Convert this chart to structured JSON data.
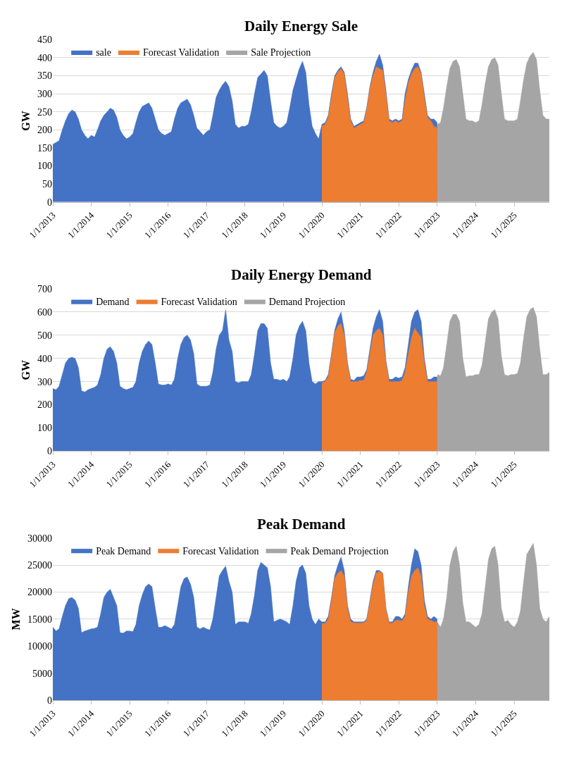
{
  "chart_data": [
    {
      "type": "area",
      "title": "Daily Energy Sale",
      "ylabel": "GW",
      "xlim": [
        "2013-01",
        "2025-12"
      ],
      "xticks": [
        {
          "value": "2013-01",
          "label": "1/1/2013"
        },
        {
          "value": "2014-01",
          "label": "1/1/2014"
        },
        {
          "value": "2015-01",
          "label": "1/1/2015"
        },
        {
          "value": "2016-01",
          "label": "1/1/2016"
        },
        {
          "value": "2017-01",
          "label": "1/1/2017"
        },
        {
          "value": "2018-01",
          "label": "1/1/2018"
        },
        {
          "value": "2019-01",
          "label": "1/1/2019"
        },
        {
          "value": "2020-01",
          "label": "1/1/2020"
        },
        {
          "value": "2021-01",
          "label": "1/1/2021"
        },
        {
          "value": "2022-01",
          "label": "1/1/2022"
        },
        {
          "value": "2023-01",
          "label": "1/1/2023"
        },
        {
          "value": "2024-01",
          "label": "1/1/2024"
        },
        {
          "value": "2025-01",
          "label": "1/1/2025"
        }
      ],
      "ylim": [
        0,
        450
      ],
      "yticks": [
        0,
        50,
        100,
        150,
        200,
        250,
        300,
        350,
        400,
        450
      ],
      "grid": "y",
      "legend": "top",
      "series": [
        {
          "name": "sale",
          "color": "#4472c4",
          "x": [
            "2013-01",
            "2013-02",
            "2013-03",
            "2013-04",
            "2013-05",
            "2013-06",
            "2013-07",
            "2013-08",
            "2013-09",
            "2013-10",
            "2013-11",
            "2013-12",
            "2014-01",
            "2014-02",
            "2014-03",
            "2014-04",
            "2014-05",
            "2014-06",
            "2014-07",
            "2014-08",
            "2014-09",
            "2014-10",
            "2014-11",
            "2014-12",
            "2015-01",
            "2015-02",
            "2015-03",
            "2015-04",
            "2015-05",
            "2015-06",
            "2015-07",
            "2015-08",
            "2015-09",
            "2015-10",
            "2015-11",
            "2015-12",
            "2016-01",
            "2016-02",
            "2016-03",
            "2016-04",
            "2016-05",
            "2016-06",
            "2016-07",
            "2016-08",
            "2016-09",
            "2016-10",
            "2016-11",
            "2016-12",
            "2017-01",
            "2017-02",
            "2017-03",
            "2017-04",
            "2017-05",
            "2017-06",
            "2017-07",
            "2017-08",
            "2017-09",
            "2017-10",
            "2017-11",
            "2017-12",
            "2018-01",
            "2018-02",
            "2018-03",
            "2018-04",
            "2018-05",
            "2018-06",
            "2018-07",
            "2018-08",
            "2018-09",
            "2018-10",
            "2018-11",
            "2018-12",
            "2019-01",
            "2019-02",
            "2019-03",
            "2019-04",
            "2019-05",
            "2019-06",
            "2019-07",
            "2019-08",
            "2019-09",
            "2019-10",
            "2019-11",
            "2019-12",
            "2020-01",
            "2020-02",
            "2020-03",
            "2020-04",
            "2020-05",
            "2020-06",
            "2020-07",
            "2020-08",
            "2020-09",
            "2020-10",
            "2020-11",
            "2020-12",
            "2021-01",
            "2021-02",
            "2021-03",
            "2021-04",
            "2021-05",
            "2021-06",
            "2021-07",
            "2021-08",
            "2021-09",
            "2021-10",
            "2021-11",
            "2021-12",
            "2022-01",
            "2022-02",
            "2022-03",
            "2022-04",
            "2022-05",
            "2022-06",
            "2022-07",
            "2022-08",
            "2022-09",
            "2022-10",
            "2022-11",
            "2022-12",
            "2023-01"
          ],
          "values": [
            160,
            165,
            170,
            200,
            225,
            245,
            255,
            250,
            230,
            200,
            185,
            175,
            185,
            180,
            200,
            225,
            240,
            250,
            260,
            255,
            235,
            200,
            185,
            175,
            180,
            190,
            220,
            250,
            265,
            270,
            275,
            260,
            230,
            200,
            190,
            185,
            190,
            195,
            230,
            260,
            275,
            280,
            285,
            270,
            240,
            205,
            195,
            185,
            195,
            200,
            240,
            290,
            310,
            325,
            335,
            320,
            280,
            215,
            205,
            210,
            210,
            215,
            250,
            300,
            345,
            355,
            365,
            350,
            280,
            220,
            210,
            205,
            210,
            220,
            260,
            310,
            340,
            370,
            390,
            360,
            270,
            210,
            190,
            175,
            215,
            220,
            240,
            300,
            350,
            365,
            375,
            360,
            300,
            230,
            210,
            215,
            220,
            225,
            260,
            320,
            360,
            390,
            410,
            380,
            310,
            230,
            225,
            230,
            225,
            230,
            300,
            340,
            365,
            385,
            385,
            360,
            300,
            240,
            230,
            230,
            220
          ]
        },
        {
          "name": "Forecast Validation",
          "color": "#ed7d31",
          "x": [
            "2020-01",
            "2020-02",
            "2020-03",
            "2020-04",
            "2020-05",
            "2020-06",
            "2020-07",
            "2020-08",
            "2020-09",
            "2020-10",
            "2020-11",
            "2020-12",
            "2021-01",
            "2021-02",
            "2021-03",
            "2021-04",
            "2021-05",
            "2021-06",
            "2021-07",
            "2021-08",
            "2021-09",
            "2021-10",
            "2021-11",
            "2021-12",
            "2022-01",
            "2022-02",
            "2022-03",
            "2022-04",
            "2022-05",
            "2022-06",
            "2022-07",
            "2022-08",
            "2022-09",
            "2022-10",
            "2022-11",
            "2022-12",
            "2023-01"
          ],
          "values": [
            210,
            215,
            235,
            290,
            345,
            360,
            370,
            355,
            290,
            225,
            205,
            210,
            215,
            220,
            255,
            315,
            350,
            375,
            370,
            365,
            300,
            225,
            220,
            225,
            220,
            225,
            280,
            330,
            355,
            370,
            375,
            355,
            290,
            235,
            225,
            210,
            205
          ]
        },
        {
          "name": "Sale Projection",
          "color": "#a5a5a5",
          "x": [
            "2023-01",
            "2023-02",
            "2023-03",
            "2023-04",
            "2023-05",
            "2023-06",
            "2023-07",
            "2023-08",
            "2023-09",
            "2023-10",
            "2023-11",
            "2023-12",
            "2024-01",
            "2024-02",
            "2024-03",
            "2024-04",
            "2024-05",
            "2024-06",
            "2024-07",
            "2024-08",
            "2024-09",
            "2024-10",
            "2024-11",
            "2024-12",
            "2025-01",
            "2025-02",
            "2025-03",
            "2025-04",
            "2025-05",
            "2025-06",
            "2025-07",
            "2025-08",
            "2025-09",
            "2025-10",
            "2025-11",
            "2025-12"
          ],
          "values": [
            215,
            220,
            260,
            320,
            370,
            390,
            395,
            375,
            300,
            230,
            225,
            225,
            220,
            225,
            270,
            330,
            375,
            395,
            400,
            380,
            300,
            230,
            225,
            225,
            225,
            230,
            280,
            340,
            385,
            405,
            415,
            395,
            310,
            240,
            230,
            230
          ]
        }
      ]
    },
    {
      "type": "area",
      "title": "Daily Energy Demand",
      "ylabel": "GW",
      "xlim": [
        "2013-01",
        "2025-12"
      ],
      "xticks": [
        {
          "value": "2013-01",
          "label": "1/1/2013"
        },
        {
          "value": "2014-01",
          "label": "1/1/2014"
        },
        {
          "value": "2015-01",
          "label": "1/1/2015"
        },
        {
          "value": "2016-01",
          "label": "1/1/2016"
        },
        {
          "value": "2017-01",
          "label": "1/1/2017"
        },
        {
          "value": "2018-01",
          "label": "1/1/2018"
        },
        {
          "value": "2019-01",
          "label": "1/1/2019"
        },
        {
          "value": "2020-01",
          "label": "1/1/2020"
        },
        {
          "value": "2021-01",
          "label": "1/1/2021"
        },
        {
          "value": "2022-01",
          "label": "1/1/2022"
        },
        {
          "value": "2023-01",
          "label": "1/1/2023"
        },
        {
          "value": "2024-01",
          "label": "1/1/2024"
        },
        {
          "value": "2025-01",
          "label": "1/1/2025"
        }
      ],
      "ylim": [
        0,
        700
      ],
      "yticks": [
        0,
        100,
        200,
        300,
        400,
        500,
        600,
        700
      ],
      "grid": "y",
      "legend": "top",
      "series": [
        {
          "name": "Demand",
          "color": "#4472c4",
          "x": [
            "2013-01",
            "2013-02",
            "2013-03",
            "2013-04",
            "2013-05",
            "2013-06",
            "2013-07",
            "2013-08",
            "2013-09",
            "2013-10",
            "2013-11",
            "2013-12",
            "2014-01",
            "2014-02",
            "2014-03",
            "2014-04",
            "2014-05",
            "2014-06",
            "2014-07",
            "2014-08",
            "2014-09",
            "2014-10",
            "2014-11",
            "2014-12",
            "2015-01",
            "2015-02",
            "2015-03",
            "2015-04",
            "2015-05",
            "2015-06",
            "2015-07",
            "2015-08",
            "2015-09",
            "2015-10",
            "2015-11",
            "2015-12",
            "2016-01",
            "2016-02",
            "2016-03",
            "2016-04",
            "2016-05",
            "2016-06",
            "2016-07",
            "2016-08",
            "2016-09",
            "2016-10",
            "2016-11",
            "2016-12",
            "2017-01",
            "2017-02",
            "2017-03",
            "2017-04",
            "2017-05",
            "2017-06",
            "2017-07",
            "2017-08",
            "2017-09",
            "2017-10",
            "2017-11",
            "2017-12",
            "2018-01",
            "2018-02",
            "2018-03",
            "2018-04",
            "2018-05",
            "2018-06",
            "2018-07",
            "2018-08",
            "2018-09",
            "2018-10",
            "2018-11",
            "2018-12",
            "2019-01",
            "2019-02",
            "2019-03",
            "2019-04",
            "2019-05",
            "2019-06",
            "2019-07",
            "2019-08",
            "2019-09",
            "2019-10",
            "2019-11",
            "2019-12",
            "2020-01",
            "2020-02",
            "2020-03",
            "2020-04",
            "2020-05",
            "2020-06",
            "2020-07",
            "2020-08",
            "2020-09",
            "2020-10",
            "2020-11",
            "2020-12",
            "2021-01",
            "2021-02",
            "2021-03",
            "2021-04",
            "2021-05",
            "2021-06",
            "2021-07",
            "2021-08",
            "2021-09",
            "2021-10",
            "2021-11",
            "2021-12",
            "2022-01",
            "2022-02",
            "2022-03",
            "2022-04",
            "2022-05",
            "2022-06",
            "2022-07",
            "2022-08",
            "2022-09",
            "2022-10",
            "2022-11",
            "2022-12",
            "2023-01"
          ],
          "values": [
            270,
            265,
            280,
            330,
            380,
            400,
            405,
            400,
            360,
            260,
            255,
            265,
            270,
            275,
            285,
            330,
            400,
            440,
            450,
            430,
            380,
            280,
            270,
            265,
            270,
            275,
            300,
            380,
            430,
            460,
            475,
            460,
            380,
            290,
            285,
            285,
            290,
            285,
            310,
            400,
            460,
            490,
            500,
            480,
            420,
            290,
            280,
            280,
            280,
            285,
            340,
            440,
            500,
            520,
            610,
            480,
            430,
            300,
            295,
            300,
            300,
            300,
            330,
            420,
            520,
            550,
            550,
            530,
            380,
            310,
            310,
            305,
            310,
            300,
            320,
            400,
            500,
            540,
            560,
            520,
            380,
            300,
            290,
            300,
            300,
            305,
            330,
            420,
            520,
            570,
            600,
            520,
            380,
            310,
            305,
            320,
            320,
            325,
            350,
            440,
            530,
            580,
            610,
            560,
            390,
            310,
            310,
            320,
            315,
            320,
            360,
            460,
            560,
            600,
            610,
            560,
            400,
            310,
            310,
            320,
            320
          ]
        },
        {
          "name": "Forecast Validation",
          "color": "#ed7d31",
          "x": [
            "2020-01",
            "2020-02",
            "2020-03",
            "2020-04",
            "2020-05",
            "2020-06",
            "2020-07",
            "2020-08",
            "2020-09",
            "2020-10",
            "2020-11",
            "2020-12",
            "2021-01",
            "2021-02",
            "2021-03",
            "2021-04",
            "2021-05",
            "2021-06",
            "2021-07",
            "2021-08",
            "2021-09",
            "2021-10",
            "2021-11",
            "2021-12",
            "2022-01",
            "2022-02",
            "2022-03",
            "2022-04",
            "2022-05",
            "2022-06",
            "2022-07",
            "2022-08",
            "2022-09",
            "2022-10",
            "2022-11",
            "2022-12",
            "2023-01"
          ],
          "values": [
            295,
            300,
            320,
            410,
            510,
            540,
            550,
            500,
            370,
            300,
            300,
            300,
            305,
            305,
            340,
            420,
            500,
            520,
            530,
            500,
            380,
            300,
            300,
            300,
            300,
            305,
            340,
            420,
            490,
            530,
            510,
            490,
            380,
            300,
            300,
            300,
            300
          ]
        },
        {
          "name": "Demand Projection",
          "color": "#a5a5a5",
          "x": [
            "2023-01",
            "2023-02",
            "2023-03",
            "2023-04",
            "2023-05",
            "2023-06",
            "2023-07",
            "2023-08",
            "2023-09",
            "2023-10",
            "2023-11",
            "2023-12",
            "2024-01",
            "2024-02",
            "2024-03",
            "2024-04",
            "2024-05",
            "2024-06",
            "2024-07",
            "2024-08",
            "2024-09",
            "2024-10",
            "2024-11",
            "2024-12",
            "2025-01",
            "2025-02",
            "2025-03",
            "2025-04",
            "2025-05",
            "2025-06",
            "2025-07",
            "2025-08",
            "2025-09",
            "2025-10",
            "2025-11",
            "2025-12"
          ],
          "values": [
            330,
            325,
            360,
            460,
            560,
            590,
            590,
            560,
            400,
            320,
            325,
            325,
            330,
            330,
            370,
            470,
            570,
            600,
            610,
            570,
            410,
            330,
            325,
            330,
            330,
            335,
            380,
            490,
            580,
            610,
            620,
            580,
            440,
            330,
            330,
            340
          ]
        }
      ]
    },
    {
      "type": "area",
      "title": "Peak Demand",
      "ylabel": "MW",
      "xlim": [
        "2013-01",
        "2025-12"
      ],
      "xticks": [
        {
          "value": "2013-01",
          "label": "1/1/2013"
        },
        {
          "value": "2014-01",
          "label": "1/1/2014"
        },
        {
          "value": "2015-01",
          "label": "1/1/2015"
        },
        {
          "value": "2016-01",
          "label": "1/1/2016"
        },
        {
          "value": "2017-01",
          "label": "1/1/2017"
        },
        {
          "value": "2018-01",
          "label": "1/1/2018"
        },
        {
          "value": "2019-01",
          "label": "1/1/2019"
        },
        {
          "value": "2020-01",
          "label": "1/1/2020"
        },
        {
          "value": "2021-01",
          "label": "1/1/2021"
        },
        {
          "value": "2022-01",
          "label": "1/1/2022"
        },
        {
          "value": "2023-01",
          "label": "1/1/2023"
        },
        {
          "value": "2024-01",
          "label": "1/1/2024"
        },
        {
          "value": "2025-01",
          "label": "1/1/2025"
        }
      ],
      "ylim": [
        0,
        30000
      ],
      "yticks": [
        0,
        5000,
        10000,
        15000,
        20000,
        25000,
        30000
      ],
      "grid": "y",
      "legend": "top",
      "series": [
        {
          "name": "Peak Demand",
          "color": "#4472c4",
          "x": [
            "2013-01",
            "2013-02",
            "2013-03",
            "2013-04",
            "2013-05",
            "2013-06",
            "2013-07",
            "2013-08",
            "2013-09",
            "2013-10",
            "2013-11",
            "2013-12",
            "2014-01",
            "2014-02",
            "2014-03",
            "2014-04",
            "2014-05",
            "2014-06",
            "2014-07",
            "2014-08",
            "2014-09",
            "2014-10",
            "2014-11",
            "2014-12",
            "2015-01",
            "2015-02",
            "2015-03",
            "2015-04",
            "2015-05",
            "2015-06",
            "2015-07",
            "2015-08",
            "2015-09",
            "2015-10",
            "2015-11",
            "2015-12",
            "2016-01",
            "2016-02",
            "2016-03",
            "2016-04",
            "2016-05",
            "2016-06",
            "2016-07",
            "2016-08",
            "2016-09",
            "2016-10",
            "2016-11",
            "2016-12",
            "2017-01",
            "2017-02",
            "2017-03",
            "2017-04",
            "2017-05",
            "2017-06",
            "2017-07",
            "2017-08",
            "2017-09",
            "2017-10",
            "2017-11",
            "2017-12",
            "2018-01",
            "2018-02",
            "2018-03",
            "2018-04",
            "2018-05",
            "2018-06",
            "2018-07",
            "2018-08",
            "2018-09",
            "2018-10",
            "2018-11",
            "2018-12",
            "2019-01",
            "2019-02",
            "2019-03",
            "2019-04",
            "2019-05",
            "2019-06",
            "2019-07",
            "2019-08",
            "2019-09",
            "2019-10",
            "2019-11",
            "2019-12",
            "2020-01",
            "2020-02",
            "2020-03",
            "2020-04",
            "2020-05",
            "2020-06",
            "2020-07",
            "2020-08",
            "2020-09",
            "2020-10",
            "2020-11",
            "2020-12",
            "2021-01",
            "2021-02",
            "2021-03",
            "2021-04",
            "2021-05",
            "2021-06",
            "2021-07",
            "2021-08",
            "2021-09",
            "2021-10",
            "2021-11",
            "2021-12",
            "2022-01",
            "2022-02",
            "2022-03",
            "2022-04",
            "2022-05",
            "2022-06",
            "2022-07",
            "2022-08",
            "2022-09",
            "2022-10",
            "2022-11",
            "2022-12",
            "2023-01"
          ],
          "values": [
            13500,
            12800,
            13200,
            15500,
            17500,
            18800,
            19000,
            18500,
            17000,
            12500,
            12800,
            13000,
            13200,
            13300,
            13500,
            16000,
            19000,
            20000,
            20500,
            19000,
            17500,
            12500,
            12400,
            12800,
            12800,
            12700,
            14000,
            17500,
            19500,
            21000,
            21500,
            21000,
            17000,
            13500,
            13500,
            13800,
            13500,
            13200,
            14000,
            17500,
            21000,
            22500,
            22800,
            21500,
            19000,
            13500,
            13200,
            13500,
            13200,
            13000,
            15000,
            19000,
            23000,
            24000,
            24800,
            22000,
            20000,
            14000,
            14500,
            14500,
            14500,
            14200,
            16000,
            19500,
            24000,
            25500,
            25000,
            24500,
            21000,
            14500,
            14800,
            15000,
            14800,
            14500,
            14000,
            17500,
            22000,
            24500,
            25000,
            23500,
            17500,
            15000,
            14000,
            15000,
            14500,
            14500,
            15500,
            19000,
            23000,
            25000,
            26500,
            24000,
            17500,
            15000,
            14500,
            14500,
            14500,
            14500,
            15000,
            18500,
            22000,
            24000,
            24000,
            23500,
            17000,
            14500,
            14500,
            15500,
            15500,
            15000,
            16000,
            21000,
            25000,
            28000,
            27500,
            25000,
            18500,
            15500,
            15000,
            15500,
            15000
          ]
        },
        {
          "name": "Forecast Validation",
          "color": "#ed7d31",
          "x": [
            "2020-01",
            "2020-02",
            "2020-03",
            "2020-04",
            "2020-05",
            "2020-06",
            "2020-07",
            "2020-08",
            "2020-09",
            "2020-10",
            "2020-11",
            "2020-12",
            "2021-01",
            "2021-02",
            "2021-03",
            "2021-04",
            "2021-05",
            "2021-06",
            "2021-07",
            "2021-08",
            "2021-09",
            "2021-10",
            "2021-11",
            "2021-12",
            "2022-01",
            "2022-02",
            "2022-03",
            "2022-04",
            "2022-05",
            "2022-06",
            "2022-07",
            "2022-08",
            "2022-09",
            "2022-10",
            "2022-11",
            "2022-12",
            "2023-01"
          ],
          "values": [
            14200,
            14200,
            15000,
            18500,
            22500,
            23500,
            24000,
            23000,
            17000,
            14500,
            14300,
            14300,
            14300,
            14300,
            14800,
            18000,
            21500,
            23500,
            23800,
            23500,
            16800,
            14300,
            14300,
            14800,
            14800,
            14700,
            15500,
            20000,
            23000,
            24000,
            24500,
            23000,
            17500,
            15000,
            14800,
            14500,
            14500
          ]
        },
        {
          "name": "Peak Demand Projection",
          "color": "#a5a5a5",
          "x": [
            "2023-01",
            "2023-02",
            "2023-03",
            "2023-04",
            "2023-05",
            "2023-06",
            "2023-07",
            "2023-08",
            "2023-09",
            "2023-10",
            "2023-11",
            "2023-12",
            "2024-01",
            "2024-02",
            "2024-03",
            "2024-04",
            "2024-05",
            "2024-06",
            "2024-07",
            "2024-08",
            "2024-09",
            "2024-10",
            "2024-11",
            "2024-12",
            "2025-01",
            "2025-02",
            "2025-03",
            "2025-04",
            "2025-05",
            "2025-06",
            "2025-07",
            "2025-08",
            "2025-09",
            "2025-10",
            "2025-11",
            "2025-12"
          ],
          "values": [
            14500,
            13500,
            15000,
            19000,
            25000,
            27500,
            28500,
            25000,
            18000,
            14500,
            14500,
            14000,
            13500,
            14000,
            16000,
            21000,
            26000,
            28000,
            28500,
            25000,
            17000,
            14500,
            14800,
            14000,
            13500,
            14500,
            16500,
            22000,
            27000,
            28000,
            29000,
            25000,
            17000,
            15000,
            14500,
            15500
          ]
        }
      ]
    }
  ]
}
